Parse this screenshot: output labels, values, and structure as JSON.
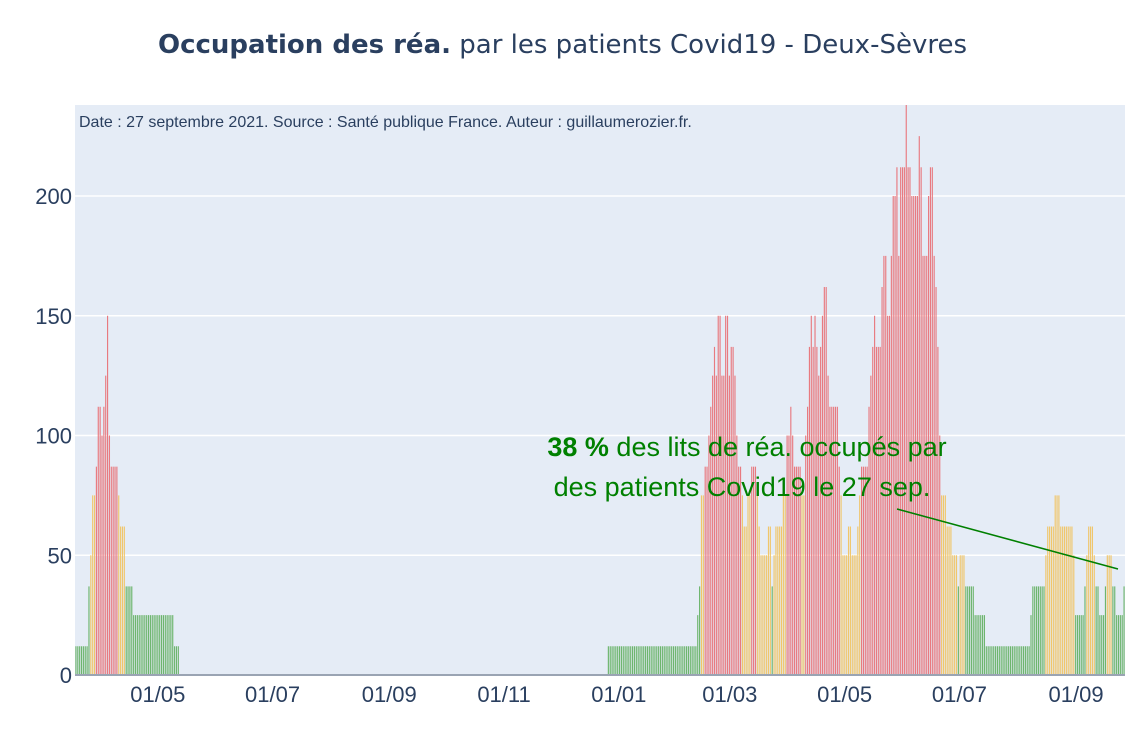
{
  "title": {
    "bold": "Occupation des réa.",
    "rest": " par les patients Covid19 - Deux-Sèvres"
  },
  "chart_data": {
    "type": "bar",
    "title": "Occupation des réa. par les patients Covid19 - Deux-Sèvres",
    "xlabel": "",
    "ylabel": "",
    "ylim": [
      0,
      238
    ],
    "yticks": [
      0,
      50,
      100,
      150,
      200
    ],
    "xticks": [
      "01/05",
      "01/07",
      "01/09",
      "01/11",
      "01/01",
      "01/03",
      "01/05",
      "01/07",
      "01/09"
    ],
    "x_start": "2020-03-18",
    "x_end": "2021-09-27",
    "source_note": "Date : 27 septembre 2021. Source : Santé publique France. Auteur : guillaumerozier.fr.",
    "colors": {
      "low": "#6db56d",
      "mid": "#f0c66b",
      "high": "#e87a80",
      "background": "#e5ecf6",
      "annotation": "#008000"
    },
    "thresholds": {
      "mid": 40,
      "high": 80
    },
    "series": [
      {
        "values": [
          12,
          12,
          12,
          12,
          12,
          12,
          12,
          37,
          50,
          75,
          75,
          87,
          112,
          112,
          100,
          112,
          125,
          150,
          100,
          87,
          87,
          87,
          87,
          75,
          62,
          62,
          62,
          37,
          37,
          37,
          37,
          25,
          25,
          25,
          25,
          25,
          25,
          25,
          25,
          25,
          25,
          25,
          25,
          25,
          25,
          25,
          25,
          25,
          25,
          25,
          25,
          25,
          25,
          12,
          12,
          12,
          0,
          0,
          0,
          0,
          0,
          0,
          0,
          0,
          0,
          0,
          0,
          0,
          0,
          0,
          0,
          0,
          0,
          0,
          0,
          0,
          0,
          0,
          0,
          0,
          0,
          0,
          0,
          0,
          0,
          0,
          0,
          0,
          0,
          0,
          0,
          0,
          0,
          0,
          0,
          0,
          0,
          0,
          0,
          0,
          0,
          0,
          0,
          0,
          0,
          0,
          0,
          0,
          0,
          0,
          0,
          0,
          0,
          0,
          0,
          0,
          0,
          0,
          0,
          0,
          0,
          0,
          0,
          0,
          0,
          0,
          0,
          0,
          0,
          0,
          0,
          0,
          0,
          0,
          0,
          0,
          0,
          0,
          0,
          0,
          0,
          0,
          0,
          0,
          0,
          0,
          0,
          0,
          0,
          0,
          0,
          0,
          0,
          0,
          0,
          0,
          0,
          0,
          0,
          0,
          0,
          0,
          0,
          0,
          0,
          0,
          0,
          0,
          0,
          0,
          0,
          0,
          0,
          0,
          0,
          0,
          0,
          0,
          0,
          0,
          0,
          0,
          0,
          0,
          0,
          0,
          0,
          0,
          0,
          0,
          0,
          0,
          0,
          0,
          0,
          0,
          0,
          0,
          0,
          0,
          0,
          0,
          0,
          0,
          0,
          0,
          0,
          0,
          0,
          0,
          0,
          0,
          0,
          0,
          0,
          0,
          0,
          0,
          0,
          0,
          0,
          0,
          0,
          0,
          0,
          0,
          0,
          0,
          0,
          0,
          0,
          0,
          0,
          0,
          0,
          0,
          0,
          0,
          0,
          0,
          0,
          0,
          0,
          0,
          0,
          0,
          0,
          0,
          0,
          0,
          0,
          0,
          0,
          0,
          0,
          0,
          0,
          0,
          0,
          0,
          0,
          0,
          0,
          0,
          0,
          0,
          0,
          0,
          0,
          0,
          0,
          0,
          0,
          0,
          0,
          0,
          0,
          0,
          0,
          0,
          0,
          0,
          0,
          0,
          0,
          0,
          12,
          12,
          12,
          12,
          12,
          12,
          12,
          12,
          12,
          12,
          12,
          12,
          12,
          12,
          12,
          12,
          12,
          12,
          12,
          12,
          12,
          12,
          12,
          12,
          12,
          12,
          12,
          12,
          12,
          12,
          12,
          12,
          12,
          12,
          12,
          12,
          12,
          12,
          12,
          12,
          12,
          12,
          12,
          12,
          12,
          12,
          12,
          12,
          25,
          37,
          75,
          75,
          87,
          87,
          100,
          112,
          125,
          137,
          125,
          150,
          150,
          125,
          125,
          150,
          150,
          125,
          137,
          137,
          125,
          100,
          87,
          87,
          75,
          62,
          62,
          75,
          75,
          87,
          87,
          87,
          75,
          62,
          50,
          50,
          50,
          50,
          62,
          62,
          37,
          50,
          62,
          62,
          62,
          62,
          75,
          75,
          100,
          100,
          112,
          100,
          87,
          87,
          87,
          87,
          75,
          75,
          100,
          112,
          137,
          150,
          137,
          150,
          137,
          125,
          137,
          150,
          162,
          162,
          125,
          112,
          112,
          112,
          112,
          112,
          87,
          75,
          50,
          50,
          50,
          62,
          62,
          50,
          50,
          50,
          62,
          75,
          87,
          87,
          87,
          87,
          112,
          125,
          137,
          150,
          137,
          137,
          137,
          162,
          175,
          175,
          150,
          150,
          175,
          200,
          200,
          212,
          175,
          212,
          212,
          212,
          238,
          212,
          212,
          200,
          200,
          200,
          200,
          225,
          212,
          175,
          175,
          175,
          200,
          212,
          212,
          175,
          162,
          137,
          100,
          75,
          75,
          75,
          62,
          62,
          62,
          50,
          50,
          50,
          37,
          50,
          50,
          50,
          37,
          37,
          37,
          37,
          37,
          25,
          25,
          25,
          25,
          25,
          25,
          12,
          12,
          12,
          12,
          12,
          12,
          12,
          12,
          12,
          12,
          12,
          12,
          12,
          12,
          12,
          12,
          12,
          12,
          12,
          12,
          12,
          12,
          12,
          12,
          25,
          37,
          37,
          37,
          37,
          37,
          37,
          37,
          50,
          62,
          62,
          62,
          62,
          75,
          75,
          75,
          62,
          62,
          62,
          62,
          62,
          62,
          62,
          50,
          25,
          25,
          25,
          25,
          25,
          37,
          50,
          62,
          62,
          62,
          50,
          37,
          37,
          25,
          25,
          25,
          37,
          50,
          50,
          50,
          37,
          37,
          25,
          25,
          25,
          25,
          37
        ]
      }
    ],
    "annotation": {
      "bold": "38  %",
      "line1_rest": " des lits de réa. occupés par",
      "line2": "des patients Covid19 le 27 sep."
    }
  }
}
